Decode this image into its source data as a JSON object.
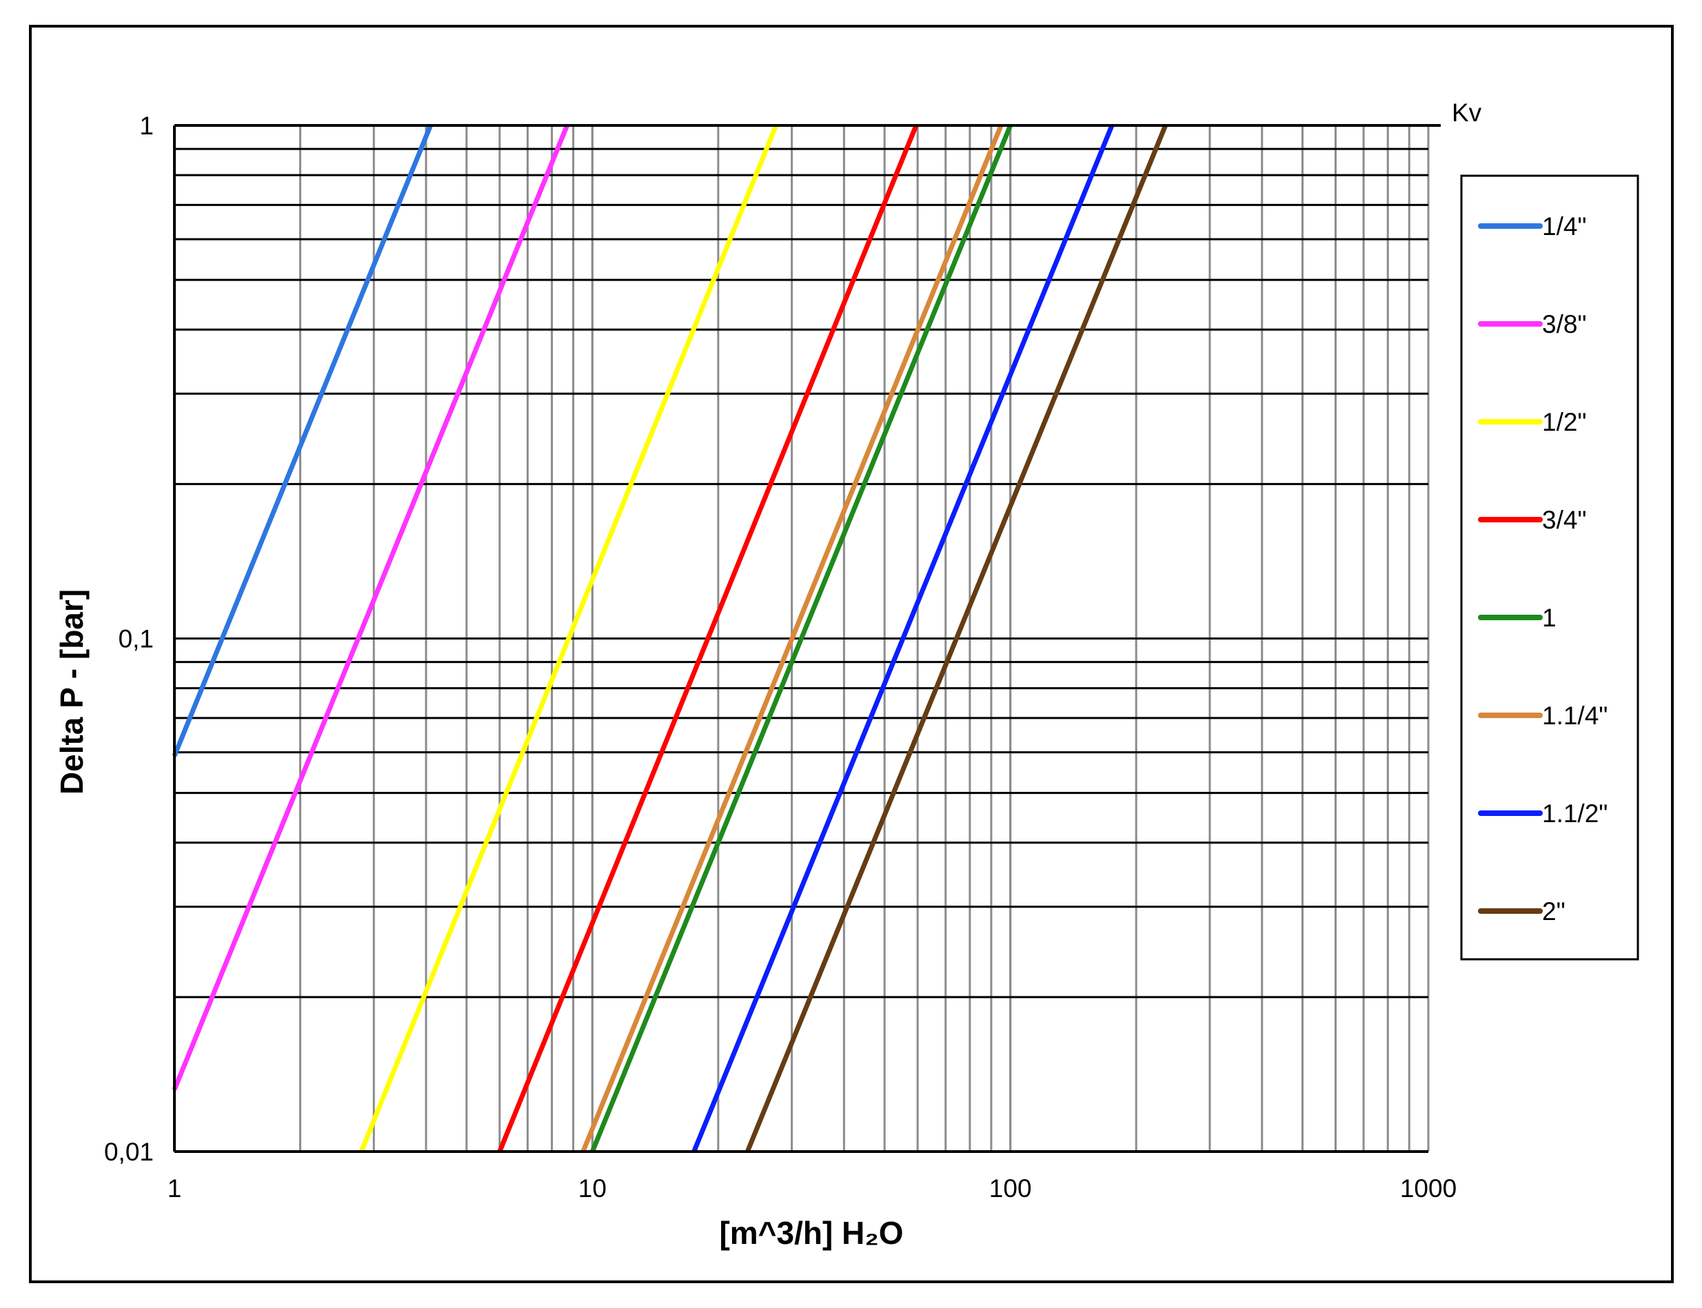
{
  "chart_data": {
    "type": "line",
    "xlabel": "[m^3/h] H₂O",
    "ylabel": "Delta P - [bar]",
    "corner_label": "Kv",
    "x_scale": "log",
    "y_scale": "log",
    "xlim": [
      1,
      1000
    ],
    "ylim": [
      0.01,
      1
    ],
    "x_ticks": [
      {
        "value": 1,
        "label": "1"
      },
      {
        "value": 10,
        "label": "10"
      },
      {
        "value": 100,
        "label": "100"
      },
      {
        "value": 1000,
        "label": "1000"
      }
    ],
    "y_ticks": [
      {
        "value": 0.01,
        "label": "0,01"
      },
      {
        "value": 0.1,
        "label": "0,1"
      },
      {
        "value": 1,
        "label": "1"
      }
    ],
    "grid": true,
    "legend_position": "right",
    "series": [
      {
        "name": "1/4\"",
        "color": "#2f76e0",
        "x": [
          1,
          4.1
        ],
        "y": [
          0.059,
          1
        ]
      },
      {
        "name": "3/8\"",
        "color": "#ff33ff",
        "x": [
          1,
          8.7
        ],
        "y": [
          0.0132,
          1
        ]
      },
      {
        "name": "1/2\"",
        "color": "#ffff00",
        "x": [
          2.8,
          27.5
        ],
        "y": [
          0.01,
          1
        ]
      },
      {
        "name": "3/4\"",
        "color": "#ff0000",
        "x": [
          6.0,
          59.5
        ],
        "y": [
          0.01,
          1
        ]
      },
      {
        "name": "1",
        "color": "#1e8a1e",
        "x": [
          10.0,
          100
        ],
        "y": [
          0.01,
          1
        ]
      },
      {
        "name": "1.1/4\"",
        "color": "#d9883a",
        "x": [
          9.5,
          95
        ],
        "y": [
          0.01,
          1
        ]
      },
      {
        "name": "1.1/2\"",
        "color": "#0a1eff",
        "x": [
          17.5,
          175
        ],
        "y": [
          0.01,
          1
        ]
      },
      {
        "name": "2\"",
        "color": "#663c14",
        "x": [
          23.5,
          235
        ],
        "y": [
          0.01,
          1
        ]
      }
    ]
  }
}
